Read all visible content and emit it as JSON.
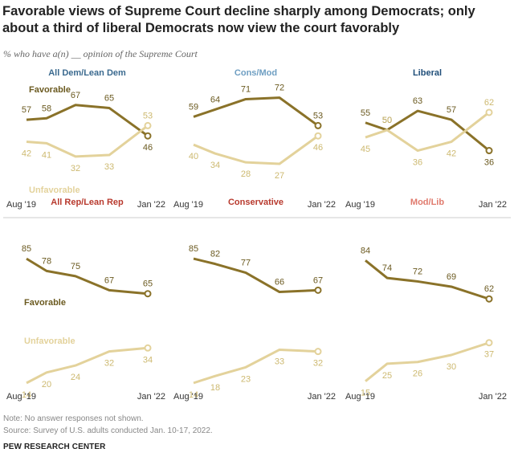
{
  "title": "Favorable views of Supreme Court decline sharply among Democrats; only about a third of liberal Democrats now view the court favorably",
  "subtitle": "% who have a(n) __ opinion of the Supreme Court",
  "note": "Note: No answer responses not shown.",
  "source": "Source: Survey of U.S. adults conducted Jan. 10-17, 2022.",
  "org": "PEW RESEARCH CENTER",
  "colors": {
    "favorable": "#8a7229",
    "unfavorable": "#e3d29b",
    "dem_title": "#3b6a8f",
    "cons_mod_title": "#6e9ec2",
    "liberal_title": "#1f4e79",
    "rep_title": "#b83a2e",
    "conservative_title": "#b83a2e",
    "mod_lib_title": "#e07a6d",
    "divider": "#cccccc"
  },
  "chart_data": [
    {
      "type": "line",
      "title": "All Dem/Lean Dem",
      "x_start_label": "Aug '19",
      "x_end_label": "Jan '22",
      "ylim": [
        0,
        100
      ],
      "series": [
        {
          "name": "Favorable",
          "values": [
            57,
            58,
            67,
            65,
            46
          ]
        },
        {
          "name": "Unfavorable",
          "values": [
            42,
            41,
            32,
            33,
            53
          ]
        }
      ]
    },
    {
      "type": "line",
      "title": "Cons/Mod",
      "x_start_label": "Aug '19",
      "x_end_label": "Jan '22",
      "ylim": [
        0,
        100
      ],
      "series": [
        {
          "values": [
            59,
            64,
            71,
            72,
            53
          ]
        },
        {
          "values": [
            40,
            34,
            28,
            27,
            46
          ]
        }
      ]
    },
    {
      "type": "line",
      "title": "Liberal",
      "x_start_label": "Aug '19",
      "x_end_label": "Jan '22",
      "ylim": [
        0,
        100
      ],
      "series": [
        {
          "values": [
            55,
            50,
            63,
            57,
            36
          ]
        },
        {
          "values": [
            45,
            50,
            36,
            42,
            62
          ]
        }
      ]
    },
    {
      "type": "line",
      "title": "All Rep/Lean Rep",
      "x_start_label": "Aug '19",
      "x_end_label": "Jan '22",
      "ylim": [
        0,
        100
      ],
      "series": [
        {
          "name": "Favorable",
          "values": [
            85,
            78,
            75,
            67,
            65
          ]
        },
        {
          "name": "Unfavorable",
          "values": [
            14,
            20,
            24,
            32,
            34
          ]
        }
      ]
    },
    {
      "type": "line",
      "title": "Conservative",
      "x_start_label": "Aug '19",
      "x_end_label": "Jan '22",
      "ylim": [
        0,
        100
      ],
      "series": [
        {
          "values": [
            85,
            82,
            77,
            66,
            67
          ]
        },
        {
          "values": [
            14,
            18,
            23,
            33,
            32
          ]
        }
      ]
    },
    {
      "type": "line",
      "title": "Mod/Lib",
      "x_start_label": "Aug '19",
      "x_end_label": "Jan '22",
      "ylim": [
        0,
        100
      ],
      "series": [
        {
          "values": [
            84,
            74,
            72,
            69,
            62
          ]
        },
        {
          "values": [
            15,
            25,
            26,
            30,
            37
          ]
        }
      ]
    }
  ]
}
